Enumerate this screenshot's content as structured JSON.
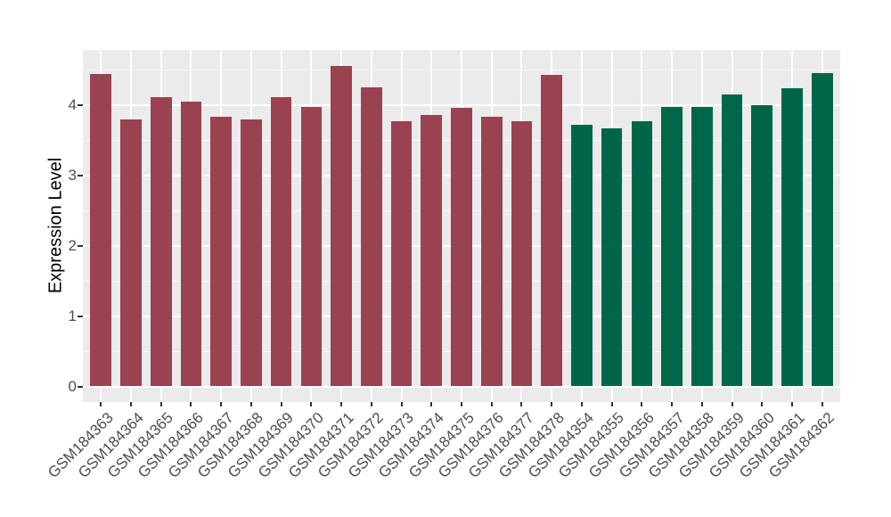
{
  "chart_data": {
    "type": "bar",
    "title": "",
    "xlabel": "",
    "ylabel": "Expression Level",
    "categories": [
      "GSM184363",
      "GSM184364",
      "GSM184365",
      "GSM184366",
      "GSM184367",
      "GSM184368",
      "GSM184369",
      "GSM184370",
      "GSM184371",
      "GSM184372",
      "GSM184373",
      "GSM184374",
      "GSM184375",
      "GSM184376",
      "GSM184377",
      "GSM184378",
      "GSM184354",
      "GSM184355",
      "GSM184356",
      "GSM184357",
      "GSM184358",
      "GSM184359",
      "GSM184360",
      "GSM184361",
      "GSM184362"
    ],
    "values": [
      4.45,
      3.8,
      4.12,
      4.05,
      3.84,
      3.8,
      4.12,
      3.98,
      4.56,
      4.26,
      3.78,
      3.87,
      3.97,
      3.84,
      3.77,
      4.44,
      3.73,
      3.68,
      3.78,
      3.98,
      3.98,
      4.15,
      4.0,
      4.25,
      4.46
    ],
    "groups": [
      "maroon",
      "maroon",
      "maroon",
      "maroon",
      "maroon",
      "maroon",
      "maroon",
      "maroon",
      "maroon",
      "maroon",
      "maroon",
      "maroon",
      "maroon",
      "maroon",
      "maroon",
      "maroon",
      "green",
      "green",
      "green",
      "green",
      "green",
      "green",
      "green",
      "green",
      "green"
    ],
    "group_colors": {
      "maroon": "#9A4250",
      "green": "#00664A"
    },
    "ytick_labels": [
      "0",
      "1",
      "2",
      "3",
      "4"
    ],
    "ytick_values": [
      0,
      1,
      2,
      3,
      4
    ],
    "y_minor_ticks": [
      0.5,
      1.5,
      2.5,
      3.5,
      4.5
    ],
    "ylim": [
      0,
      4.79
    ],
    "legend": "none",
    "grid": {
      "horizontal_major": true,
      "horizontal_minor": true,
      "vertical_at_categories": true
    },
    "colors": {
      "panel_background": "#EBEBEB",
      "grid": "#FFFFFF",
      "axis_text": "#4D4D4D",
      "axis_title": "#000000",
      "tick_marks": "#333333",
      "page_background": "#FFFFFF"
    }
  }
}
